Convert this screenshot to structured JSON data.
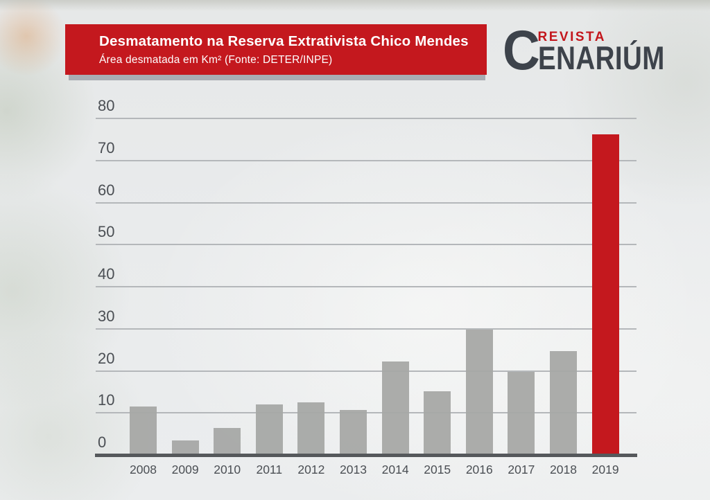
{
  "header": {
    "title": "Desmatamento na Reserva Extrativista Chico Mendes",
    "subtitle": "Área desmatada em Km² (Fonte: DETER/INPE)"
  },
  "logo": {
    "c": "C",
    "line1": "REVISTA",
    "line2": "ENARIÚM"
  },
  "colors": {
    "accent_red": "#c4181e",
    "bar_gray": "#a6a8a5",
    "axis_dark": "#55585b",
    "gridline": "#b4b7ba",
    "label_text": "#4b4f54",
    "logo_dark": "#3d434b",
    "logo_red": "#c3161c",
    "banner_shadow": "#a9adb3"
  },
  "chart_data": {
    "type": "bar",
    "title": "Desmatamento na Reserva Extrativista Chico Mendes",
    "ylabel": "Área desmatada em Km²",
    "source": "Fonte: DETER/INPE",
    "categories": [
      "2008",
      "2009",
      "2010",
      "2011",
      "2012",
      "2013",
      "2014",
      "2015",
      "2016",
      "2017",
      "2018",
      "2019"
    ],
    "values": [
      11.4,
      3.3,
      6.2,
      11.9,
      12.4,
      10.5,
      22.1,
      15.0,
      29.7,
      19.6,
      24.5,
      76.1
    ],
    "ylim": [
      0,
      80
    ],
    "yticks": [
      0,
      10,
      20,
      30,
      40,
      50,
      60,
      70,
      80
    ],
    "grid": "horizontal",
    "legend": null,
    "bar_color": "#a6a8a5",
    "highlight": {
      "category": "2019",
      "color": "#c4181e"
    }
  }
}
